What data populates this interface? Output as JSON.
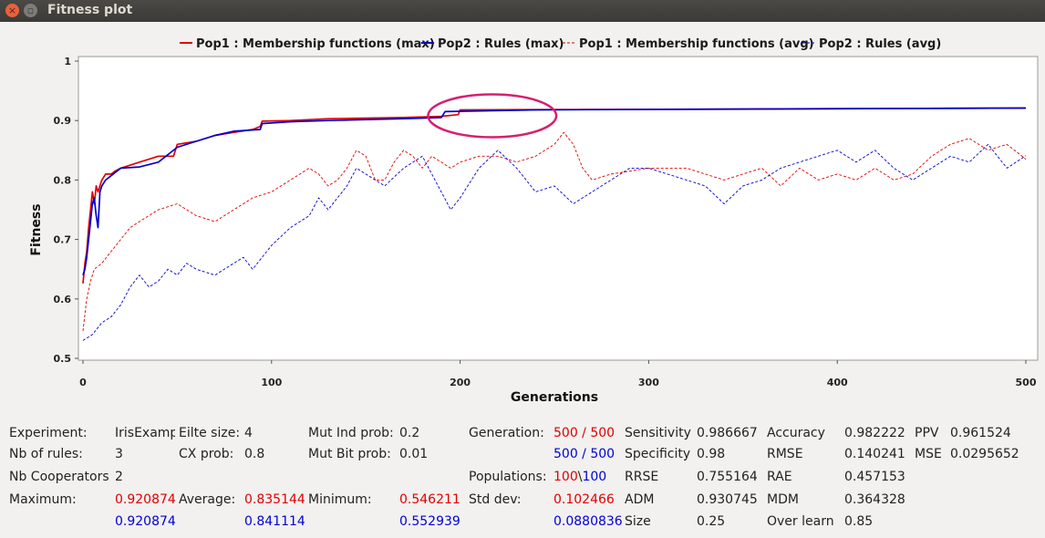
{
  "window": {
    "title": "Fitness plot",
    "close_glyph": "×",
    "max_glyph": "▫"
  },
  "chart_data": {
    "type": "line",
    "xlabel": "Generations",
    "ylabel": "Fitness",
    "xlim": [
      0,
      500
    ],
    "ylim": [
      0.5,
      1.0
    ],
    "xticks": [
      0,
      100,
      200,
      300,
      400,
      500
    ],
    "yticks": [
      0.5,
      0.6,
      0.7,
      0.8,
      0.9,
      1
    ],
    "ytick_labels": [
      "0.5",
      "0.6",
      "0.7",
      "0.8",
      "0.9",
      "1"
    ],
    "grid": false,
    "legend_position": "top",
    "annotation": {
      "type": "ellipse",
      "center": [
        217,
        0.908
      ],
      "rx_units": 34,
      "ry_units": 0.036,
      "color": "#d6206e"
    },
    "series": [
      {
        "name": "Pop1 : Membership functions (max)",
        "color": "#e00000",
        "style": "solid",
        "points": [
          [
            0,
            0.626
          ],
          [
            1,
            0.66
          ],
          [
            2,
            0.68
          ],
          [
            3,
            0.72
          ],
          [
            4,
            0.75
          ],
          [
            5,
            0.78
          ],
          [
            6,
            0.76
          ],
          [
            7,
            0.79
          ],
          [
            8,
            0.78
          ],
          [
            10,
            0.8
          ],
          [
            12,
            0.81
          ],
          [
            15,
            0.81
          ],
          [
            17,
            0.815
          ],
          [
            20,
            0.82
          ],
          [
            30,
            0.83
          ],
          [
            35,
            0.835
          ],
          [
            40,
            0.84
          ],
          [
            48,
            0.84
          ],
          [
            50,
            0.86
          ],
          [
            60,
            0.865
          ],
          [
            70,
            0.875
          ],
          [
            80,
            0.88
          ],
          [
            90,
            0.885
          ],
          [
            94,
            0.89
          ],
          [
            95,
            0.899
          ],
          [
            110,
            0.9
          ],
          [
            130,
            0.903
          ],
          [
            170,
            0.905
          ],
          [
            190,
            0.907
          ],
          [
            199,
            0.91
          ],
          [
            200,
            0.918
          ],
          [
            500,
            0.921
          ]
        ]
      },
      {
        "name": "Pop2 : Rules (max)",
        "color": "#0000d0",
        "style": "solid",
        "points": [
          [
            0,
            0.64
          ],
          [
            1,
            0.65
          ],
          [
            2,
            0.67
          ],
          [
            3,
            0.7
          ],
          [
            4,
            0.73
          ],
          [
            5,
            0.76
          ],
          [
            6,
            0.77
          ],
          [
            7,
            0.74
          ],
          [
            8,
            0.72
          ],
          [
            9,
            0.78
          ],
          [
            10,
            0.79
          ],
          [
            12,
            0.8
          ],
          [
            16,
            0.81
          ],
          [
            20,
            0.82
          ],
          [
            30,
            0.822
          ],
          [
            40,
            0.83
          ],
          [
            50,
            0.855
          ],
          [
            60,
            0.865
          ],
          [
            70,
            0.875
          ],
          [
            80,
            0.882
          ],
          [
            94,
            0.885
          ],
          [
            95,
            0.895
          ],
          [
            110,
            0.898
          ],
          [
            130,
            0.9
          ],
          [
            170,
            0.903
          ],
          [
            190,
            0.905
          ],
          [
            192,
            0.915
          ],
          [
            240,
            0.918
          ],
          [
            500,
            0.921
          ]
        ]
      },
      {
        "name": "Pop1 : Membership functions (avg)",
        "color": "#e00000",
        "style": "dashed",
        "points": [
          [
            0,
            0.546
          ],
          [
            2,
            0.6
          ],
          [
            4,
            0.63
          ],
          [
            6,
            0.65
          ],
          [
            10,
            0.66
          ],
          [
            15,
            0.68
          ],
          [
            20,
            0.7
          ],
          [
            25,
            0.72
          ],
          [
            30,
            0.73
          ],
          [
            40,
            0.75
          ],
          [
            50,
            0.76
          ],
          [
            60,
            0.74
          ],
          [
            70,
            0.73
          ],
          [
            80,
            0.75
          ],
          [
            90,
            0.77
          ],
          [
            100,
            0.78
          ],
          [
            110,
            0.8
          ],
          [
            120,
            0.82
          ],
          [
            125,
            0.81
          ],
          [
            130,
            0.79
          ],
          [
            135,
            0.8
          ],
          [
            140,
            0.82
          ],
          [
            145,
            0.85
          ],
          [
            150,
            0.84
          ],
          [
            155,
            0.8
          ],
          [
            160,
            0.8
          ],
          [
            165,
            0.83
          ],
          [
            170,
            0.85
          ],
          [
            175,
            0.84
          ],
          [
            180,
            0.82
          ],
          [
            185,
            0.84
          ],
          [
            190,
            0.83
          ],
          [
            195,
            0.82
          ],
          [
            200,
            0.83
          ],
          [
            210,
            0.84
          ],
          [
            220,
            0.84
          ],
          [
            230,
            0.83
          ],
          [
            240,
            0.84
          ],
          [
            250,
            0.86
          ],
          [
            255,
            0.88
          ],
          [
            260,
            0.86
          ],
          [
            265,
            0.82
          ],
          [
            270,
            0.8
          ],
          [
            280,
            0.81
          ],
          [
            300,
            0.82
          ],
          [
            320,
            0.82
          ],
          [
            330,
            0.81
          ],
          [
            340,
            0.8
          ],
          [
            350,
            0.81
          ],
          [
            360,
            0.82
          ],
          [
            370,
            0.79
          ],
          [
            380,
            0.82
          ],
          [
            390,
            0.8
          ],
          [
            400,
            0.81
          ],
          [
            410,
            0.8
          ],
          [
            420,
            0.82
          ],
          [
            430,
            0.8
          ],
          [
            440,
            0.81
          ],
          [
            450,
            0.84
          ],
          [
            460,
            0.86
          ],
          [
            470,
            0.87
          ],
          [
            480,
            0.85
          ],
          [
            490,
            0.86
          ],
          [
            500,
            0.835
          ]
        ]
      },
      {
        "name": "Pop2 : Rules (avg)",
        "color": "#0000d0",
        "style": "dashed",
        "points": [
          [
            0,
            0.53
          ],
          [
            5,
            0.54
          ],
          [
            10,
            0.56
          ],
          [
            15,
            0.57
          ],
          [
            20,
            0.59
          ],
          [
            25,
            0.62
          ],
          [
            30,
            0.64
          ],
          [
            35,
            0.62
          ],
          [
            40,
            0.63
          ],
          [
            45,
            0.65
          ],
          [
            50,
            0.64
          ],
          [
            55,
            0.66
          ],
          [
            60,
            0.65
          ],
          [
            70,
            0.64
          ],
          [
            80,
            0.66
          ],
          [
            85,
            0.67
          ],
          [
            90,
            0.65
          ],
          [
            100,
            0.69
          ],
          [
            110,
            0.72
          ],
          [
            120,
            0.74
          ],
          [
            125,
            0.77
          ],
          [
            130,
            0.75
          ],
          [
            140,
            0.79
          ],
          [
            145,
            0.82
          ],
          [
            150,
            0.81
          ],
          [
            160,
            0.79
          ],
          [
            170,
            0.82
          ],
          [
            180,
            0.84
          ],
          [
            190,
            0.78
          ],
          [
            195,
            0.75
          ],
          [
            200,
            0.77
          ],
          [
            210,
            0.82
          ],
          [
            220,
            0.85
          ],
          [
            230,
            0.82
          ],
          [
            235,
            0.8
          ],
          [
            240,
            0.78
          ],
          [
            250,
            0.79
          ],
          [
            260,
            0.76
          ],
          [
            270,
            0.78
          ],
          [
            280,
            0.8
          ],
          [
            290,
            0.82
          ],
          [
            300,
            0.82
          ],
          [
            310,
            0.81
          ],
          [
            320,
            0.8
          ],
          [
            330,
            0.79
          ],
          [
            340,
            0.76
          ],
          [
            350,
            0.79
          ],
          [
            360,
            0.8
          ],
          [
            370,
            0.82
          ],
          [
            380,
            0.83
          ],
          [
            390,
            0.84
          ],
          [
            400,
            0.85
          ],
          [
            410,
            0.83
          ],
          [
            420,
            0.85
          ],
          [
            430,
            0.82
          ],
          [
            440,
            0.8
          ],
          [
            450,
            0.82
          ],
          [
            460,
            0.84
          ],
          [
            470,
            0.83
          ],
          [
            480,
            0.86
          ],
          [
            490,
            0.82
          ],
          [
            500,
            0.841
          ]
        ]
      }
    ]
  },
  "stats": {
    "experiment_label": "Experiment:",
    "experiment_value": "IrisExamp",
    "rules_label": "Nb of rules:",
    "rules_value": "3",
    "coop_label": "Nb Cooperators",
    "coop_value": "2",
    "maximum_label": "Maximum:",
    "maximum_red": "0.920874",
    "maximum_blue": "0.920874",
    "elite_label": "Eilte size:",
    "elite_value": "4",
    "cx_label": "CX prob:",
    "cx_value": "0.8",
    "average_label": "Average:",
    "average_red": "0.835144",
    "average_blue": "0.841114",
    "mutind_label": "Mut Ind prob:",
    "mutind_value": "0.2",
    "mutbit_label": "Mut Bit prob:",
    "mutbit_value": "0.01",
    "minimum_label": "Minimum:",
    "minimum_red": "0.546211",
    "minimum_blue": "0.552939",
    "generation_label": "Generation:",
    "generation_red": "500 / 500",
    "generation_blue": "500 / 500",
    "populations_label": "Populations:",
    "populations_red": "100",
    "populations_sep": "\\",
    "populations_blue": "100",
    "stddev_label": "Std dev:",
    "stddev_red": "0.102466",
    "stddev_blue": "0.0880836",
    "sensitivity_label": "Sensitivity",
    "sensitivity_value": "0.986667",
    "specificity_label": "Specificity",
    "specificity_value": "0.98",
    "rrse_label": "RRSE",
    "rrse_value": "0.755164",
    "adm_label": "ADM",
    "adm_value": "0.930745",
    "size_label": "Size",
    "size_value": "0.25",
    "accuracy_label": "Accuracy",
    "accuracy_value": "0.982222",
    "rmse_label": "RMSE",
    "rmse_value": "0.140241",
    "rae_label": "RAE",
    "rae_value": "0.457153",
    "mdm_label": "MDM",
    "mdm_value": "0.364328",
    "overlearn_label": "Over learn",
    "overlearn_value": "0.85",
    "ppv_label": "PPV",
    "ppv_value": "0.961524",
    "mse_label": "MSE",
    "mse_value": "0.0295652"
  }
}
